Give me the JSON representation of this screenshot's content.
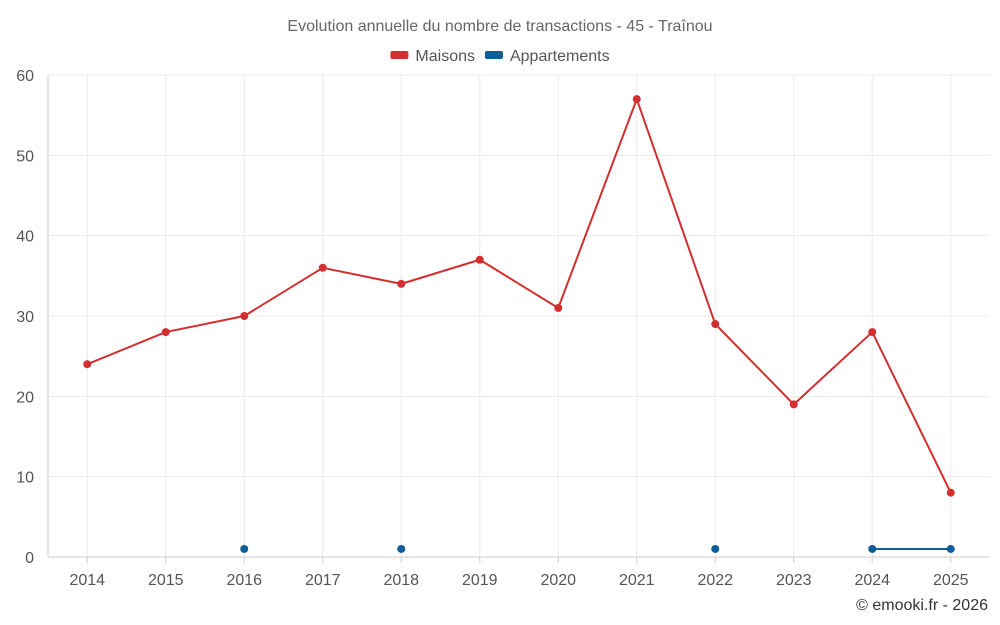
{
  "chart_data": {
    "type": "line",
    "title": "Evolution annuelle du nombre de transactions - 45 - Traînou",
    "categories": [
      "2014",
      "2015",
      "2016",
      "2017",
      "2018",
      "2019",
      "2020",
      "2021",
      "2022",
      "2023",
      "2024",
      "2025"
    ],
    "ylim": [
      0,
      60
    ],
    "yticks": [
      0,
      10,
      20,
      30,
      40,
      50,
      60
    ],
    "grid": true,
    "legend_position": "top-center",
    "series": [
      {
        "name": "Maisons",
        "color": "#d32f2f",
        "values": [
          24,
          28,
          30,
          36,
          34,
          37,
          31,
          57,
          29,
          19,
          28,
          8
        ]
      },
      {
        "name": "Appartements",
        "color": "#0d5e99",
        "values": [
          null,
          null,
          1,
          null,
          1,
          null,
          null,
          null,
          1,
          null,
          1,
          1
        ]
      }
    ],
    "credit": "© emooki.fr - 2026"
  }
}
